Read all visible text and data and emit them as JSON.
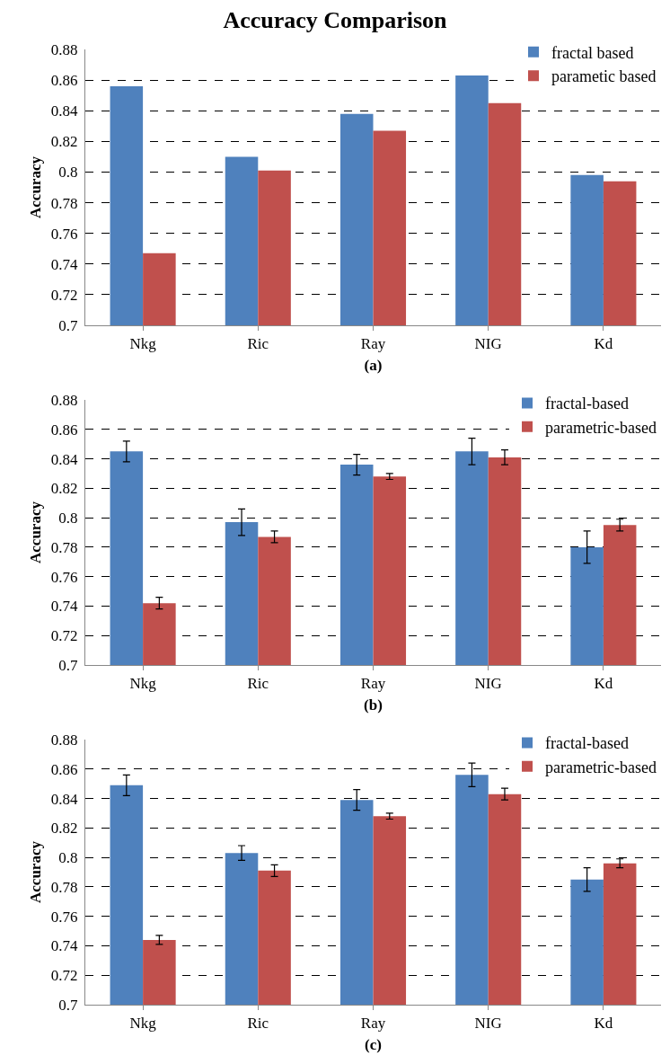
{
  "chart_data": [
    {
      "type": "bar",
      "title": "Accuracy Comparison",
      "xlabel": "(a)",
      "ylabel": "Accuracy",
      "categories": [
        "Nkg",
        "Ric",
        "Ray",
        "NIG",
        "Kd"
      ],
      "series": [
        {
          "name": "fractal based",
          "color": "#4f81bd",
          "values": [
            0.856,
            0.81,
            0.838,
            0.863,
            0.798
          ]
        },
        {
          "name": "parametic based",
          "color": "#c0504d",
          "values": [
            0.747,
            0.801,
            0.827,
            0.845,
            0.794
          ]
        }
      ],
      "ylim": [
        0.7,
        0.88
      ],
      "yticks": [
        0.7,
        0.72,
        0.74,
        0.76,
        0.78,
        0.8,
        0.82,
        0.84,
        0.86,
        0.88
      ],
      "grid": "y",
      "line_style": "dashed",
      "legend": "top right"
    },
    {
      "type": "bar",
      "xlabel": "(b)",
      "ylabel": "Accuracy",
      "categories": [
        "Nkg",
        "Ric",
        "Ray",
        "NIG",
        "Kd"
      ],
      "series": [
        {
          "name": "fractal-based",
          "color": "#4f81bd",
          "values": [
            0.845,
            0.797,
            0.836,
            0.845,
            0.78
          ],
          "errors": [
            0.007,
            0.009,
            0.007,
            0.009,
            0.011
          ]
        },
        {
          "name": "parametric-based",
          "color": "#c0504d",
          "values": [
            0.742,
            0.787,
            0.828,
            0.841,
            0.795
          ],
          "errors": [
            0.004,
            0.004,
            0.002,
            0.005,
            0.004
          ]
        }
      ],
      "ylim": [
        0.7,
        0.88
      ],
      "yticks": [
        0.7,
        0.72,
        0.74,
        0.76,
        0.78,
        0.8,
        0.82,
        0.84,
        0.86,
        0.88
      ],
      "grid": "y",
      "line_style": "dashed",
      "legend": "top right"
    },
    {
      "type": "bar",
      "xlabel": "(c)",
      "ylabel": "Accuracy",
      "categories": [
        "Nkg",
        "Ric",
        "Ray",
        "NIG",
        "Kd"
      ],
      "series": [
        {
          "name": "fractal-based",
          "color": "#4f81bd",
          "values": [
            0.849,
            0.803,
            0.839,
            0.856,
            0.785
          ],
          "errors": [
            0.007,
            0.005,
            0.007,
            0.008,
            0.008
          ]
        },
        {
          "name": "parametric-based",
          "color": "#c0504d",
          "values": [
            0.744,
            0.791,
            0.828,
            0.843,
            0.796
          ],
          "errors": [
            0.003,
            0.004,
            0.002,
            0.004,
            0.003
          ]
        }
      ],
      "ylim": [
        0.7,
        0.88
      ],
      "yticks": [
        0.7,
        0.72,
        0.74,
        0.76,
        0.78,
        0.8,
        0.82,
        0.84,
        0.86,
        0.88
      ],
      "grid": "y",
      "line_style": "dashed",
      "legend": "top right"
    }
  ]
}
